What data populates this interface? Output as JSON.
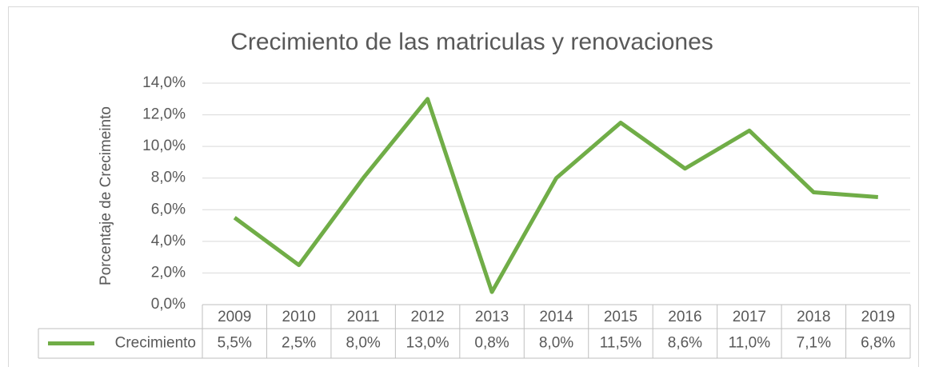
{
  "chart_data": {
    "type": "line",
    "title": "Crecimiento de las matriculas y renovaciones",
    "y_label": "Porcentaje de Crecimeinto",
    "categories": [
      "2009",
      "2010",
      "2011",
      "2012",
      "2013",
      "2014",
      "2015",
      "2016",
      "2017",
      "2018",
      "2019"
    ],
    "series": [
      {
        "name": "Crecimiento",
        "color": "#70ad47",
        "values": [
          5.5,
          2.5,
          8.0,
          13.0,
          0.8,
          8.0,
          11.5,
          8.6,
          11.0,
          7.1,
          6.8
        ],
        "value_labels": [
          "5,5%",
          "2,5%",
          "8,0%",
          "13,0%",
          "0,8%",
          "8,0%",
          "11,5%",
          "8,6%",
          "11,0%",
          "7,1%",
          "6,8%"
        ]
      }
    ],
    "ylim": [
      0,
      14
    ],
    "yticks": [
      {
        "value": 0,
        "label": "0,0%"
      },
      {
        "value": 2,
        "label": "2,0%"
      },
      {
        "value": 4,
        "label": "4,0%"
      },
      {
        "value": 6,
        "label": "6,0%"
      },
      {
        "value": 8,
        "label": "8,0%"
      },
      {
        "value": 10,
        "label": "10,0%"
      },
      {
        "value": 12,
        "label": "12,0%"
      },
      {
        "value": 14,
        "label": "14,0%"
      }
    ],
    "grid": true,
    "data_table": true
  }
}
